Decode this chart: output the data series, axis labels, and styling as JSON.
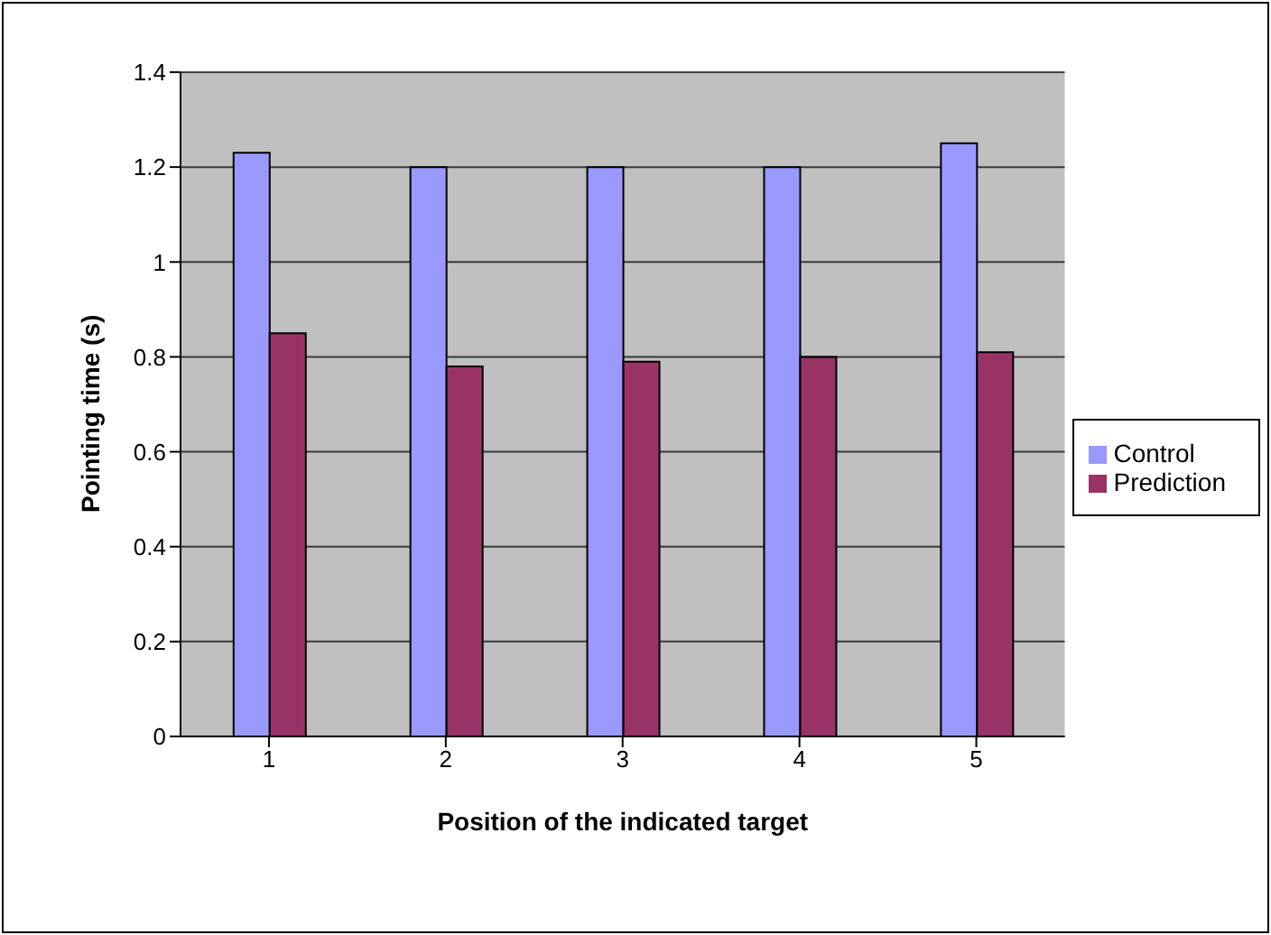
{
  "chart_data": {
    "type": "bar",
    "xlabel": "Position of the indicated target",
    "ylabel": "Pointing time (s)",
    "categories": [
      "1",
      "2",
      "3",
      "4",
      "5"
    ],
    "series": [
      {
        "name": "Control",
        "color": "#9999ff",
        "values": [
          1.23,
          1.2,
          1.2,
          1.2,
          1.25
        ]
      },
      {
        "name": "Prediction",
        "color": "#993366",
        "values": [
          0.85,
          0.78,
          0.79,
          0.8,
          0.81
        ]
      }
    ],
    "ylim": [
      0,
      1.4
    ],
    "yticks": [
      0,
      0.2,
      0.4,
      0.6,
      0.8,
      1,
      1.2,
      1.4
    ],
    "grid": "y",
    "legend": "right"
  }
}
